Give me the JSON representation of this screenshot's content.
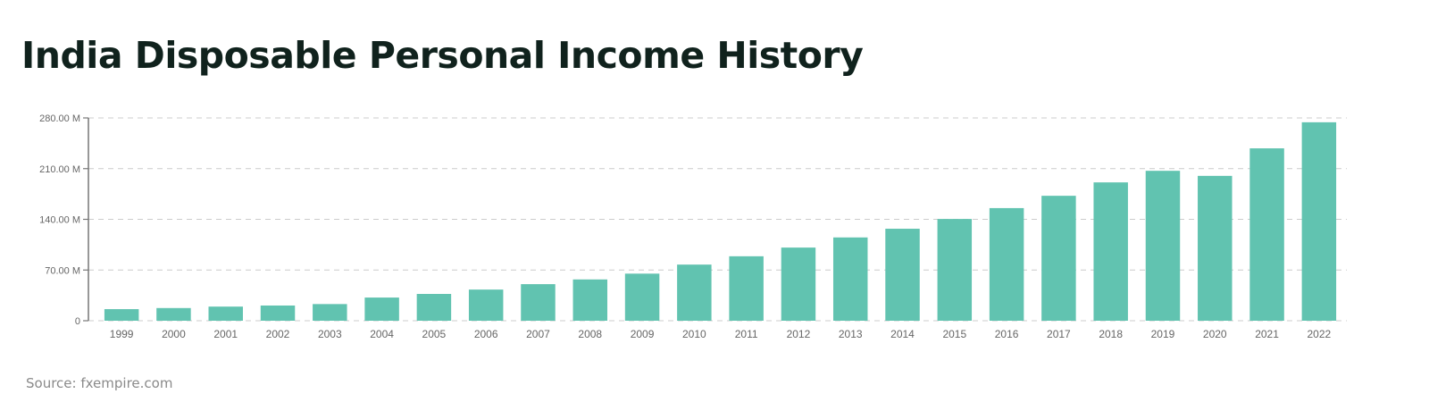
{
  "header": {
    "title": "India Disposable Personal Income History"
  },
  "footer": {
    "source": "Source: fxempire.com"
  },
  "colors": {
    "bar": "#61c3b0",
    "title": "#10221d",
    "axis": "#777777",
    "grid": "#cccccc",
    "tick_label": "#666666"
  },
  "chart_data": {
    "type": "bar",
    "title": "India Disposable Personal Income History",
    "xlabel": "",
    "ylabel": "",
    "categories": [
      "1999",
      "2000",
      "2001",
      "2002",
      "2003",
      "2004",
      "2005",
      "2006",
      "2007",
      "2008",
      "2009",
      "2010",
      "2011",
      "2012",
      "2013",
      "2014",
      "2015",
      "2016",
      "2017",
      "2018",
      "2019",
      "2020",
      "2021",
      "2022"
    ],
    "values": [
      16,
      17.5,
      19.5,
      21,
      23,
      32,
      37,
      43,
      50.5,
      57,
      65,
      77.5,
      89,
      101,
      115,
      127,
      140.5,
      155.5,
      172.5,
      191,
      207,
      200,
      238,
      274
    ],
    "unit": "M",
    "ylim": [
      0,
      280
    ],
    "yticks": [
      0,
      70,
      140,
      210,
      280
    ],
    "ytick_labels": [
      "0",
      "70.00 M",
      "140.00 M",
      "210.00 M",
      "280.00 M"
    ],
    "grid": true,
    "grid_style": "dashed-horizontal",
    "legend": null
  }
}
